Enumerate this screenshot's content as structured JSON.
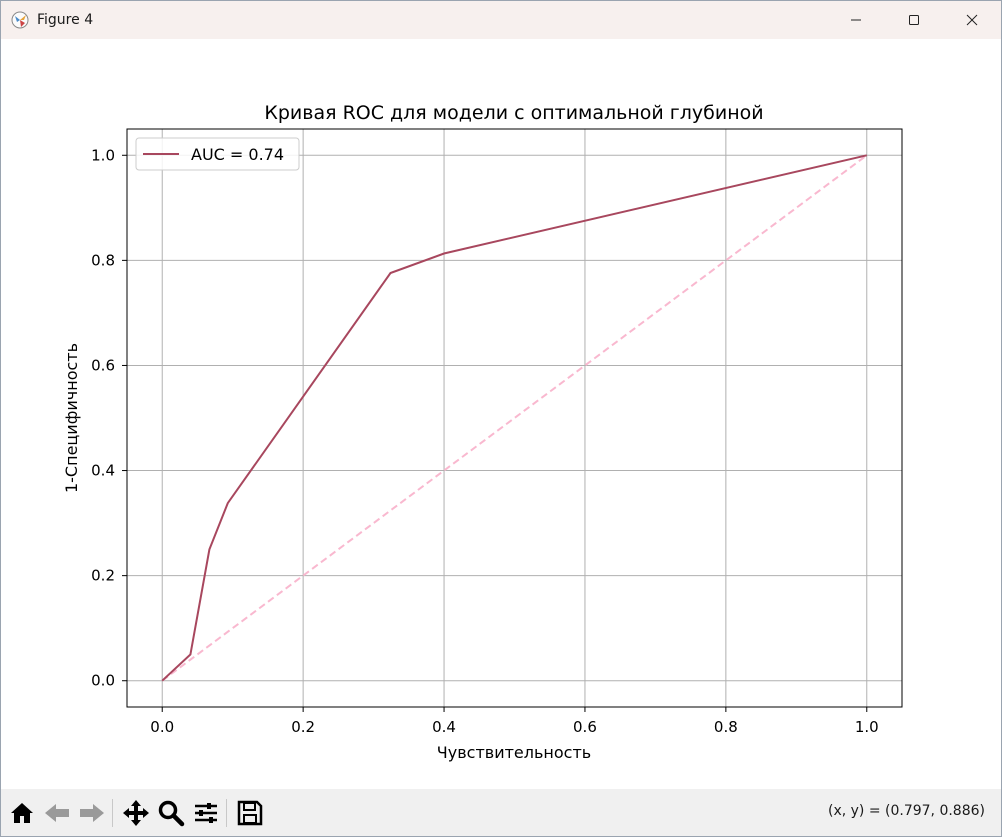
{
  "window": {
    "title": "Figure 4",
    "icons": [
      "app-icon",
      "minimize-icon",
      "maximize-icon",
      "close-icon"
    ]
  },
  "toolbar": {
    "icons": [
      "home-icon",
      "back-icon",
      "forward-icon",
      "pan-icon",
      "zoom-icon",
      "configure-subplots-icon",
      "save-icon"
    ],
    "coords": "(x, y) = (0.797, 0.886)"
  },
  "chart_data": {
    "type": "line",
    "title": "Кривая ROC для модели с оптимальной глубиной",
    "xlabel": "Чувствительность",
    "ylabel": "1-Специфичность",
    "xlim": [
      -0.05,
      1.05
    ],
    "ylim": [
      -0.05,
      1.05
    ],
    "xticks": [
      0.0,
      0.2,
      0.4,
      0.6,
      0.8,
      1.0
    ],
    "yticks": [
      0.0,
      0.2,
      0.4,
      0.6,
      0.8,
      1.0
    ],
    "xtick_labels": [
      "0.0",
      "0.2",
      "0.4",
      "0.6",
      "0.8",
      "1.0"
    ],
    "ytick_labels": [
      "0.0",
      "0.2",
      "0.4",
      "0.6",
      "0.8",
      "1.0"
    ],
    "grid": true,
    "legend_position": "top-left",
    "series": [
      {
        "name": "AUC = 0.74",
        "color": "#a8475e",
        "style": "solid",
        "x": [
          0.0,
          0.04,
          0.067,
          0.093,
          0.324,
          0.4,
          1.0
        ],
        "y": [
          0.0,
          0.05,
          0.25,
          0.338,
          0.776,
          0.813,
          1.0
        ]
      },
      {
        "color": "#f9b8cf",
        "style": "dashed",
        "x": [
          0.0,
          1.0
        ],
        "y": [
          0.0,
          1.0
        ]
      }
    ]
  }
}
